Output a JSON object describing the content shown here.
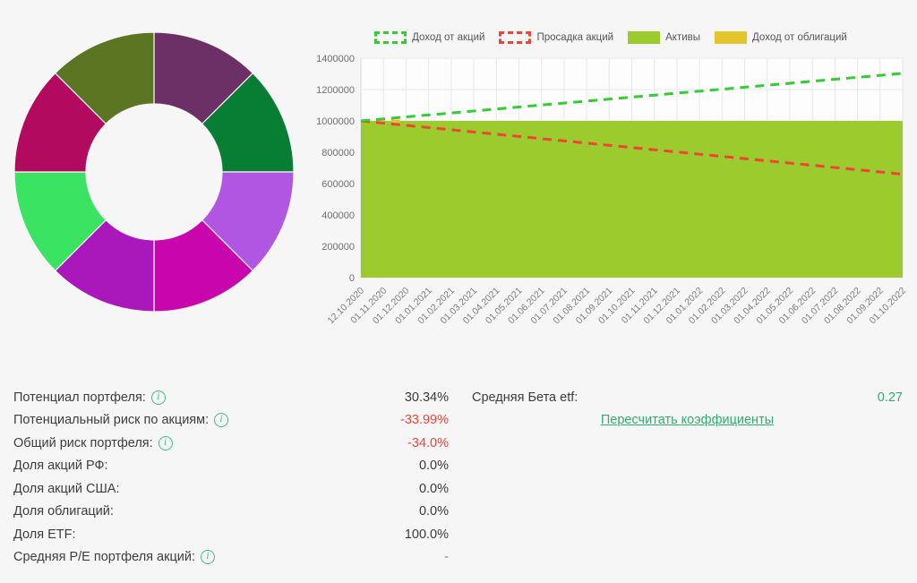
{
  "colors": {
    "dark": "#3a3a3a",
    "red": "#f44336",
    "green": "#2fae6d",
    "grid": "#e8e8e8",
    "axis_text": "#6f6f6f",
    "tick_text": "#7d7d7d",
    "page_bg": "#f6f6f6"
  },
  "chart_data": [
    {
      "type": "pie",
      "donut": true,
      "inner_radius_ratio": 0.485,
      "start_angle_deg_from_12": 0,
      "legend_position": "none",
      "segments": [
        {
          "color": "#6d3066",
          "value": 12.5
        },
        {
          "color": "#077e33",
          "value": 12.5
        },
        {
          "color": "#b156e2",
          "value": 12.5
        },
        {
          "color": "#c906ad",
          "value": 12.5
        },
        {
          "color": "#aa17bb",
          "value": 12.5
        },
        {
          "color": "#3ae462",
          "value": 12.5
        },
        {
          "color": "#b20a5f",
          "value": 12.5
        },
        {
          "color": "#5b7522",
          "value": 12.5
        }
      ]
    },
    {
      "type": "area",
      "legend_position": "top",
      "grid": true,
      "ylim": [
        0,
        1400000
      ],
      "y_ticks": [
        0,
        200000,
        400000,
        600000,
        800000,
        1000000,
        1200000,
        1400000
      ],
      "x": [
        "12.10.2020",
        "01.11.2020",
        "01.12.2020",
        "01.01.2021",
        "01.02.2021",
        "01.03.2021",
        "01.04.2021",
        "01.05.2021",
        "01.06.2021",
        "01.07.2021",
        "01.08.2021",
        "01.09.2021",
        "01.10.2021",
        "01.11.2021",
        "01.12.2021",
        "01.01.2022",
        "01.02.2022",
        "01.03.2022",
        "01.04.2022",
        "01.05.2022",
        "01.06.2022",
        "01.07.2022",
        "01.08.2022",
        "01.09.2022",
        "01.10.2022"
      ],
      "legend": [
        {
          "label": "Доход от акций",
          "swatch": "dashed",
          "color": "#33cc33"
        },
        {
          "label": "Просадка акций",
          "swatch": "dashed",
          "color": "#f44336"
        },
        {
          "label": "Активы",
          "swatch": "solid",
          "color": "#9ccb2d"
        },
        {
          "label": "Доход от облигаций",
          "swatch": "solid",
          "color": "#e4c62c"
        }
      ],
      "series": [
        {
          "name": "Доход от акций",
          "style": "dashed-line",
          "color": "#33cc33",
          "values": [
            1000000,
            1012642,
            1025283,
            1037925,
            1050567,
            1063208,
            1075850,
            1088492,
            1101133,
            1113775,
            1126417,
            1139058,
            1151700,
            1164342,
            1176983,
            1189625,
            1202267,
            1214908,
            1227550,
            1240192,
            1252833,
            1265475,
            1278117,
            1290758,
            1303400
          ]
        },
        {
          "name": "Просадка акций",
          "style": "dashed-line",
          "color": "#f44336",
          "values": [
            1000000,
            985833,
            971667,
            957500,
            943333,
            929167,
            915000,
            900833,
            886667,
            872500,
            858333,
            844167,
            830000,
            815833,
            801667,
            787500,
            773333,
            759167,
            745000,
            730833,
            716667,
            702500,
            688333,
            674167,
            660000
          ]
        },
        {
          "name": "Активы",
          "style": "area",
          "color": "#9ccb2d",
          "values": [
            1000000,
            1000000,
            1000000,
            1000000,
            1000000,
            1000000,
            1000000,
            1000000,
            1000000,
            1000000,
            1000000,
            1000000,
            1000000,
            1000000,
            1000000,
            1000000,
            1000000,
            1000000,
            1000000,
            1000000,
            1000000,
            1000000,
            1000000,
            1000000,
            1000000
          ]
        },
        {
          "name": "Доход от облигаций",
          "style": "dashed-line",
          "color": "#e4c62c",
          "values": [
            1000000,
            1000000,
            1000000
          ],
          "note": "visible only at series start"
        }
      ]
    }
  ],
  "stats_left": {
    "rows": [
      {
        "label": "Потенциал портфеля:",
        "info_icon": true,
        "value": "30.34%",
        "value_color": "dark"
      },
      {
        "label": "Потенциальный риск по акциям:",
        "info_icon": true,
        "value": "-33.99%",
        "value_color": "red"
      },
      {
        "label": "Общий риск портфеля:",
        "info_icon": true,
        "value": "-34.0%",
        "value_color": "red"
      },
      {
        "label": "Доля акций РФ:",
        "info_icon": false,
        "value": "0.0%",
        "value_color": "dark"
      },
      {
        "label": "Доля акций США:",
        "info_icon": false,
        "value": "0.0%",
        "value_color": "dark"
      },
      {
        "label": "Доля облигаций:",
        "info_icon": false,
        "value": "0.0%",
        "value_color": "dark"
      },
      {
        "label": "Доля ETF:",
        "info_icon": false,
        "value": "100.0%",
        "value_color": "dark"
      },
      {
        "label": "Средняя P/E портфеля акций:",
        "info_icon": true,
        "value": "-",
        "value_color": "green"
      }
    ]
  },
  "stats_right": {
    "rows": [
      {
        "label": "Средняя Бета etf:",
        "info_icon": false,
        "value": "0.27",
        "value_color": "green"
      }
    ],
    "link": "Пересчитать коэффициенты"
  }
}
